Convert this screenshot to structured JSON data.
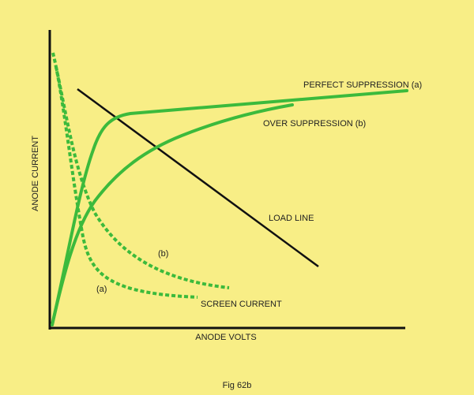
{
  "labels": {
    "perfect_suppression": "PERFECT SUPPRESSION (a)",
    "over_suppression": "OVER SUPPRESSION (b)",
    "load_line": "LOAD LINE",
    "screen_b": "(b)",
    "screen_a": "(a)",
    "screen_current": "SCREEN CURRENT",
    "y_axis": "ANODE CURRENT",
    "x_axis": "ANODE VOLTS",
    "caption": "Fig 62b"
  }
}
